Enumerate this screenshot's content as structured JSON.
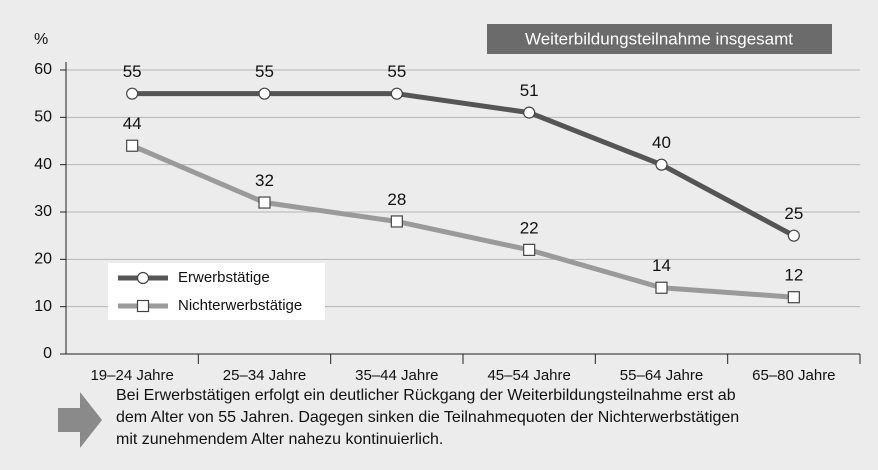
{
  "chart_data": {
    "type": "line",
    "title": "Weiterbildungsteilnahme insgesamt",
    "y_label": "%",
    "categories": [
      "19–24 Jahre",
      "25–34 Jahre",
      "35–44 Jahre",
      "45–54 Jahre",
      "55–64 Jahre",
      "65–80 Jahre"
    ],
    "series": [
      {
        "name": "Erwerbstätige",
        "color": "#555555",
        "marker": "circle",
        "values": [
          55,
          55,
          55,
          51,
          40,
          25
        ]
      },
      {
        "name": "Nichterwerbstätige",
        "color": "#9a9a9a",
        "marker": "square",
        "values": [
          44,
          32,
          28,
          22,
          14,
          12
        ]
      }
    ],
    "ylim": [
      0,
      60
    ],
    "yticks": [
      0,
      10,
      20,
      30,
      40,
      50,
      60
    ],
    "grid": true,
    "annotation": [
      "Bei Erwerbstätigen erfolgt ein deutlicher Rückgang der Weiterbildungsteilnahme erst ab",
      "dem Alter von 55 Jahren. Dagegen sinken die Teilnahmequoten der Nichterwerbstätigen",
      "mit zunehmendem Alter nahezu kontinuierlich."
    ]
  }
}
